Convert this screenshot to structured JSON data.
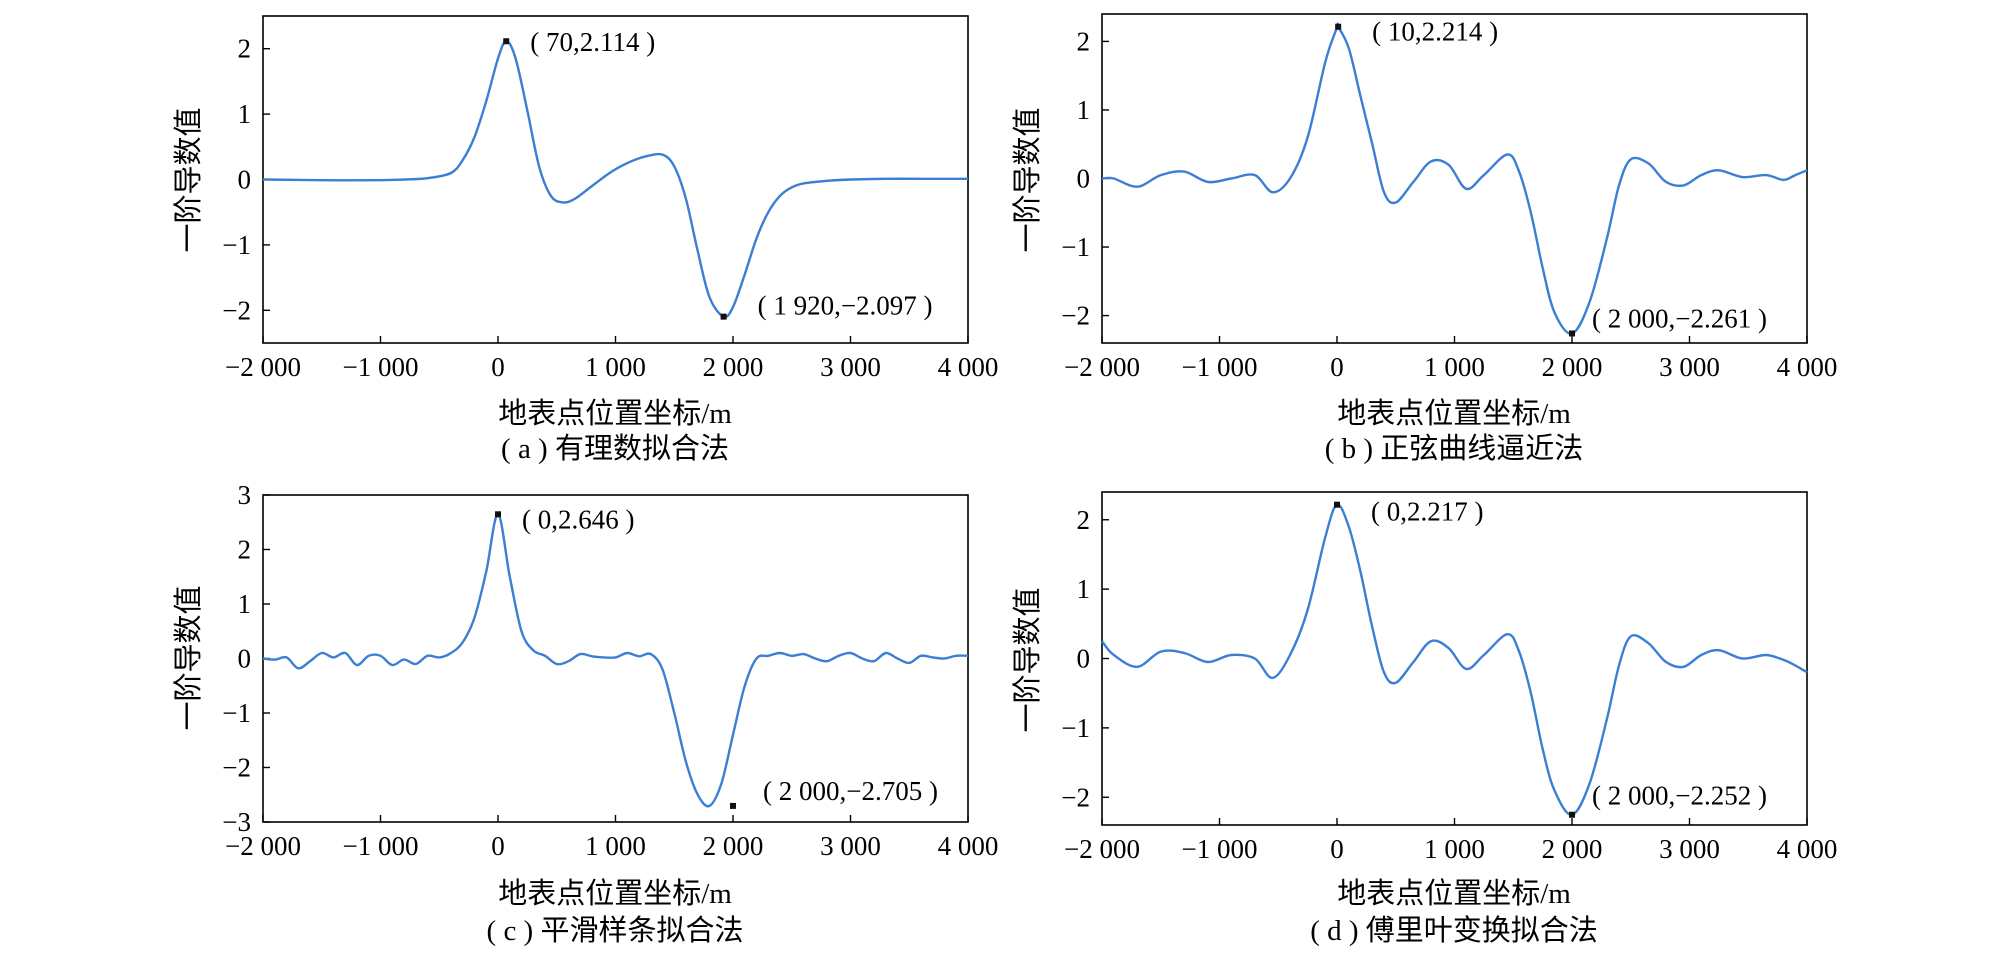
{
  "chart_data": [
    {
      "type": "line",
      "caption": "( a ) 有理数拟合法",
      "xlabel": "地表点位置坐标/m",
      "ylabel": "一阶导数值",
      "xlim": [
        -2000,
        4000
      ],
      "ylim": [
        -2.5,
        2.5
      ],
      "xticks": [
        -2000,
        -1000,
        0,
        1000,
        2000,
        3000,
        4000
      ],
      "xtick_labels": [
        "−2 000",
        "−1 000",
        "0",
        "1 000",
        "2 000",
        "3 000",
        "4 000"
      ],
      "yticks": [
        -2,
        -1,
        0,
        1,
        2
      ],
      "ytick_labels": [
        "−2",
        "−1",
        "0",
        "1",
        "2"
      ],
      "line_color": "#3b7fd4",
      "series": [
        {
          "x": [
            -2000,
            -1500,
            -1000,
            -800,
            -600,
            -400,
            -300,
            -200,
            -100,
            0,
            70,
            150,
            250,
            350,
            450,
            550,
            650,
            800,
            950,
            1100,
            1250,
            1400,
            1500,
            1600,
            1700,
            1800,
            1920,
            2000,
            2100,
            2200,
            2300,
            2400,
            2500,
            2600,
            2800,
            3000,
            3300,
            3600,
            4000
          ],
          "y": [
            0.0,
            -0.01,
            -0.01,
            0.0,
            0.02,
            0.1,
            0.3,
            0.65,
            1.2,
            1.85,
            2.114,
            1.85,
            1.05,
            0.2,
            -0.25,
            -0.35,
            -0.3,
            -0.1,
            0.1,
            0.25,
            0.35,
            0.38,
            0.2,
            -0.3,
            -1.1,
            -1.8,
            -2.097,
            -1.95,
            -1.45,
            -0.9,
            -0.5,
            -0.25,
            -0.12,
            -0.06,
            -0.02,
            0.0,
            0.01,
            0.01,
            0.01
          ]
        }
      ],
      "annotations": [
        {
          "x": 70,
          "y": 2.114,
          "label": "( 70,2.114 )"
        },
        {
          "x": 1920,
          "y": -2.097,
          "label": "( 1 920,−2.097 )"
        }
      ]
    },
    {
      "type": "line",
      "caption": "( b ) 正弦曲线逼近法",
      "xlabel": "地表点位置坐标/m",
      "ylabel": "一阶导数值",
      "xlim": [
        -2000,
        4000
      ],
      "ylim": [
        -2.4,
        2.4
      ],
      "xticks": [
        -2000,
        -1000,
        0,
        1000,
        2000,
        3000,
        4000
      ],
      "xtick_labels": [
        "−2 000",
        "−1 000",
        "0",
        "1 000",
        "2 000",
        "3 000",
        "4 000"
      ],
      "yticks": [
        -2,
        -1,
        0,
        1,
        2
      ],
      "ytick_labels": [
        "−2",
        "−1",
        "0",
        "1",
        "2"
      ],
      "line_color": "#3b7fd4",
      "series": [
        {
          "x": [
            -2000,
            -1900,
            -1700,
            -1500,
            -1300,
            -1100,
            -900,
            -700,
            -550,
            -400,
            -250,
            -100,
            0,
            10,
            100,
            200,
            300,
            400,
            500,
            650,
            800,
            950,
            1100,
            1250,
            1450,
            1550,
            1650,
            1750,
            1850,
            2000,
            2150,
            2300,
            2400,
            2500,
            2650,
            2800,
            2950,
            3100,
            3250,
            3450,
            3650,
            3800,
            3900,
            4000
          ],
          "y": [
            0.0,
            0.0,
            -0.12,
            0.05,
            0.1,
            -0.05,
            0.0,
            0.05,
            -0.2,
            0.0,
            0.6,
            1.7,
            2.2,
            2.214,
            1.9,
            1.2,
            0.5,
            -0.2,
            -0.35,
            -0.05,
            0.25,
            0.2,
            -0.15,
            0.05,
            0.35,
            0.1,
            -0.5,
            -1.3,
            -1.95,
            -2.261,
            -1.8,
            -0.85,
            -0.1,
            0.28,
            0.22,
            -0.05,
            -0.1,
            0.05,
            0.12,
            0.02,
            0.05,
            -0.02,
            0.05,
            0.12
          ]
        }
      ],
      "annotations": [
        {
          "x": 10,
          "y": 2.214,
          "label": "( 10,2.214 )"
        },
        {
          "x": 2000,
          "y": -2.261,
          "label": "( 2 000,−2.261 )"
        }
      ]
    },
    {
      "type": "line",
      "caption": "( c ) 平滑样条拟合法",
      "xlabel": "地表点位置坐标/m",
      "ylabel": "一阶导数值",
      "xlim": [
        -2000,
        4000
      ],
      "ylim": [
        -3,
        3
      ],
      "xticks": [
        -2000,
        -1000,
        0,
        1000,
        2000,
        3000,
        4000
      ],
      "xtick_labels": [
        "−2 000",
        "−1 000",
        "0",
        "1 000",
        "2 000",
        "3 000",
        "4 000"
      ],
      "yticks": [
        -3,
        -2,
        -1,
        0,
        1,
        2,
        3
      ],
      "ytick_labels": [
        "−3",
        "−2",
        "−1",
        "0",
        "1",
        "2",
        "3"
      ],
      "line_color": "#3b7fd4",
      "series": [
        {
          "x": [
            -2000,
            -1900,
            -1800,
            -1700,
            -1600,
            -1500,
            -1400,
            -1300,
            -1200,
            -1100,
            -1000,
            -900,
            -800,
            -700,
            -600,
            -500,
            -400,
            -300,
            -200,
            -100,
            0,
            100,
            200,
            300,
            400,
            500,
            600,
            700,
            800,
            900,
            1000,
            1100,
            1200,
            1300,
            1400,
            1500,
            1600,
            1700,
            1800,
            1900,
            2000,
            2100,
            2200,
            2300,
            2400,
            2500,
            2600,
            2700,
            2800,
            2900,
            3000,
            3100,
            3200,
            3300,
            3400,
            3500,
            3600,
            3700,
            3800,
            3900,
            4000
          ],
          "y": [
            0.0,
            -0.02,
            0.02,
            -0.18,
            -0.05,
            0.1,
            0.02,
            0.1,
            -0.12,
            0.05,
            0.05,
            -0.12,
            -0.02,
            -0.1,
            0.05,
            0.02,
            0.1,
            0.3,
            0.75,
            1.6,
            2.646,
            1.5,
            0.5,
            0.15,
            0.05,
            -0.1,
            -0.05,
            0.08,
            0.04,
            0.02,
            0.02,
            0.1,
            0.04,
            0.08,
            -0.2,
            -1.0,
            -1.9,
            -2.5,
            -2.705,
            -2.3,
            -1.4,
            -0.5,
            0.0,
            0.05,
            0.1,
            0.05,
            0.08,
            0.0,
            -0.05,
            0.05,
            0.1,
            0.0,
            -0.05,
            0.1,
            0.0,
            -0.08,
            0.05,
            0.02,
            0.0,
            0.05,
            0.05
          ]
        }
      ],
      "annotations": [
        {
          "x": 0,
          "y": 2.646,
          "label": "( 0,2.646 )"
        },
        {
          "x": 2000,
          "y": -2.705,
          "label": "( 2 000,−2.705 )"
        }
      ]
    },
    {
      "type": "line",
      "caption": "( d ) 傅里叶变换拟合法",
      "xlabel": "地表点位置坐标/m",
      "ylabel": "一阶导数值",
      "xlim": [
        -2000,
        4000
      ],
      "ylim": [
        -2.4,
        2.4
      ],
      "xticks": [
        -2000,
        -1000,
        0,
        1000,
        2000,
        3000,
        4000
      ],
      "xtick_labels": [
        "−2 000",
        "−1 000",
        "0",
        "1 000",
        "2 000",
        "3 000",
        "4 000"
      ],
      "yticks": [
        -2,
        -1,
        0,
        1,
        2
      ],
      "ytick_labels": [
        "−2",
        "−1",
        "0",
        "1",
        "2"
      ],
      "line_color": "#3b7fd4",
      "series": [
        {
          "x": [
            -2000,
            -1900,
            -1700,
            -1500,
            -1300,
            -1100,
            -900,
            -700,
            -550,
            -400,
            -250,
            -100,
            0,
            100,
            200,
            300,
            400,
            500,
            650,
            800,
            950,
            1100,
            1250,
            1450,
            1550,
            1650,
            1750,
            1850,
            2000,
            2150,
            2300,
            2400,
            2500,
            2650,
            2800,
            2950,
            3100,
            3250,
            3450,
            3650,
            3800,
            3900,
            4000
          ],
          "y": [
            0.25,
            0.05,
            -0.12,
            0.1,
            0.08,
            -0.05,
            0.05,
            0.0,
            -0.28,
            0.05,
            0.7,
            1.75,
            2.217,
            1.9,
            1.25,
            0.45,
            -0.2,
            -0.35,
            -0.05,
            0.25,
            0.15,
            -0.15,
            0.05,
            0.35,
            0.1,
            -0.5,
            -1.3,
            -1.9,
            -2.252,
            -1.8,
            -0.85,
            -0.1,
            0.32,
            0.22,
            -0.05,
            -0.12,
            0.05,
            0.12,
            0.0,
            0.05,
            -0.02,
            -0.1,
            -0.2
          ]
        }
      ],
      "annotations": [
        {
          "x": 0,
          "y": 2.217,
          "label": "( 0,2.217 )"
        },
        {
          "x": 2000,
          "y": -2.252,
          "label": "( 2 000,−2.252 )"
        }
      ]
    }
  ]
}
